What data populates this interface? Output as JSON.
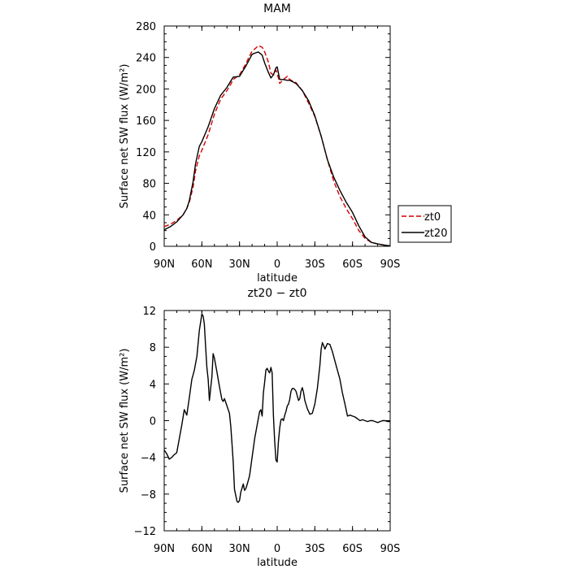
{
  "chart_data": [
    {
      "type": "line",
      "title": "MAM",
      "xlabel": "latitude",
      "ylabel": "Surface net SW flux (W/m²)",
      "xlim": [
        90,
        -90
      ],
      "ylim": [
        0,
        280
      ],
      "x_ticks": [
        90,
        60,
        30,
        0,
        -30,
        -60,
        -90
      ],
      "x_tick_labels": [
        "90N",
        "60N",
        "30N",
        "0",
        "30S",
        "60S",
        "90S"
      ],
      "y_ticks": [
        0,
        40,
        80,
        120,
        160,
        200,
        240,
        280
      ],
      "y_tick_labels": [
        "0",
        "40",
        "80",
        "120",
        "160",
        "200",
        "240",
        "280"
      ],
      "legend_position": "right",
      "grid": false,
      "series": [
        {
          "name": "zt0",
          "color": "#d40000",
          "dash": "dashed",
          "x": [
            90,
            85,
            80,
            75,
            72,
            70,
            67,
            65,
            62,
            60,
            55,
            50,
            45,
            40,
            37,
            35,
            30,
            25,
            22,
            20,
            17,
            15,
            12,
            10,
            7,
            5,
            3,
            1,
            0,
            -2,
            -5,
            -8,
            -10,
            -15,
            -20,
            -25,
            -30,
            -35,
            -40,
            -45,
            -50,
            -55,
            -60,
            -65,
            -70,
            -75,
            -80,
            -85,
            -90
          ],
          "y": [
            25,
            28,
            33,
            40,
            48,
            56,
            75,
            96,
            115,
            122,
            142,
            168,
            187,
            198,
            206,
            212,
            218,
            232,
            242,
            248,
            252,
            255,
            253,
            247,
            234,
            220,
            218,
            224,
            220,
            207,
            212,
            216,
            212,
            208,
            198,
            182,
            165,
            140,
            110,
            83,
            63,
            48,
            35,
            20,
            10,
            5,
            3,
            1.5,
            0.5
          ]
        },
        {
          "name": "zt20",
          "color": "#000000",
          "dash": "solid",
          "x": [
            90,
            85,
            80,
            75,
            72,
            70,
            67,
            65,
            62,
            60,
            55,
            50,
            45,
            40,
            37,
            35,
            30,
            25,
            22,
            20,
            17,
            15,
            12,
            10,
            7,
            5,
            3,
            1,
            0,
            -2,
            -5,
            -8,
            -10,
            -15,
            -20,
            -25,
            -30,
            -35,
            -40,
            -45,
            -50,
            -55,
            -60,
            -65,
            -70,
            -75,
            -80,
            -85,
            -90
          ],
          "y": [
            21,
            25,
            31,
            40,
            48,
            58,
            82,
            105,
            127,
            133,
            152,
            175,
            192,
            202,
            210,
            215,
            216,
            229,
            238,
            244,
            246,
            247,
            243,
            233,
            221,
            214,
            218,
            227,
            228,
            212,
            212,
            211,
            211,
            207,
            198,
            185,
            166,
            140,
            110,
            88,
            71,
            56,
            43,
            26,
            12,
            5,
            3,
            1.5,
            0.5
          ]
        }
      ]
    },
    {
      "type": "line",
      "title": "zt20 − zt0",
      "xlabel": "latitude",
      "ylabel": "Surface net SW flux (W/m²)",
      "xlim": [
        90,
        -90
      ],
      "ylim": [
        -12,
        12
      ],
      "x_ticks": [
        90,
        60,
        30,
        0,
        -30,
        -60,
        -90
      ],
      "x_tick_labels": [
        "90N",
        "60N",
        "30N",
        "0",
        "30S",
        "60S",
        "90S"
      ],
      "y_ticks": [
        -12,
        -8,
        -4,
        0,
        4,
        8,
        12
      ],
      "y_tick_labels": [
        "−12",
        "−8",
        "−4",
        "0",
        "4",
        "8",
        "12"
      ],
      "grid": false,
      "series": [
        {
          "color": "#000000",
          "dash": "solid",
          "x": [
            90,
            88,
            86,
            84,
            82,
            80,
            78,
            76,
            74,
            72,
            70,
            68,
            66,
            64,
            62,
            60,
            59,
            58,
            57,
            56,
            55,
            54,
            52,
            51,
            50,
            48,
            46,
            44,
            43,
            42,
            41,
            40,
            38,
            37,
            36,
            35,
            34,
            32,
            31,
            30,
            29,
            27,
            26,
            25,
            24,
            23,
            22,
            21,
            20,
            19,
            18,
            16,
            14,
            13,
            12,
            11,
            10,
            9,
            8,
            7,
            6,
            5,
            4,
            3,
            2,
            1,
            0,
            -1,
            -2,
            -3,
            -4,
            -5,
            -6,
            -7,
            -8,
            -9,
            -10,
            -11,
            -12,
            -13,
            -14,
            -15,
            -16,
            -17,
            -18,
            -19,
            -20,
            -21,
            -22,
            -24,
            -26,
            -28,
            -30,
            -32,
            -34,
            -35,
            -36,
            -37,
            -38,
            -40,
            -42,
            -44,
            -46,
            -48,
            -50,
            -52,
            -54,
            -56,
            -58,
            -60,
            -62,
            -64,
            -66,
            -68,
            -70,
            -72,
            -74,
            -76,
            -78,
            -80,
            -82,
            -84,
            -86,
            -88,
            -90
          ],
          "y": [
            -3.2,
            -3.6,
            -4.2,
            -4,
            -3.7,
            -3.5,
            -2,
            -0.5,
            1.2,
            0.6,
            2.5,
            4.5,
            5.5,
            7,
            9.8,
            11.6,
            11.4,
            10.5,
            8,
            5.8,
            4.5,
            2.2,
            4.8,
            7.3,
            6.8,
            5.3,
            3.7,
            2.3,
            2.1,
            2.4,
            2,
            1.6,
            0.8,
            -0.6,
            -2.5,
            -4.5,
            -7.5,
            -8.8,
            -8.9,
            -8.7,
            -7.8,
            -6.9,
            -7.6,
            -7.4,
            -7,
            -6.5,
            -6,
            -5,
            -4,
            -3,
            -2,
            -0.5,
            1,
            1.2,
            0.5,
            3,
            4.2,
            5.5,
            5.7,
            5.4,
            5.2,
            5.8,
            5.2,
            0.5,
            -2.2,
            -4.3,
            -4.5,
            -2.3,
            -0.8,
            0.1,
            0.2,
            0,
            0.6,
            1,
            1.6,
            1.8,
            2.3,
            3.2,
            3.5,
            3.5,
            3.4,
            3.2,
            2.7,
            2.2,
            2.4,
            3.2,
            3.6,
            3.1,
            2.2,
            1.3,
            0.7,
            0.8,
            1.8,
            3.5,
            6,
            7.8,
            8.5,
            8.2,
            7.8,
            8.4,
            8.3,
            7.5,
            6.5,
            5.5,
            4.5,
            3,
            1.8,
            0.5,
            0.6,
            0.5,
            0.4,
            0.2,
            0,
            0.1,
            0,
            -0.1,
            0,
            0,
            -0.1,
            -0.2,
            -0.1,
            0,
            0,
            -0.1,
            -0.1
          ]
        }
      ]
    }
  ]
}
